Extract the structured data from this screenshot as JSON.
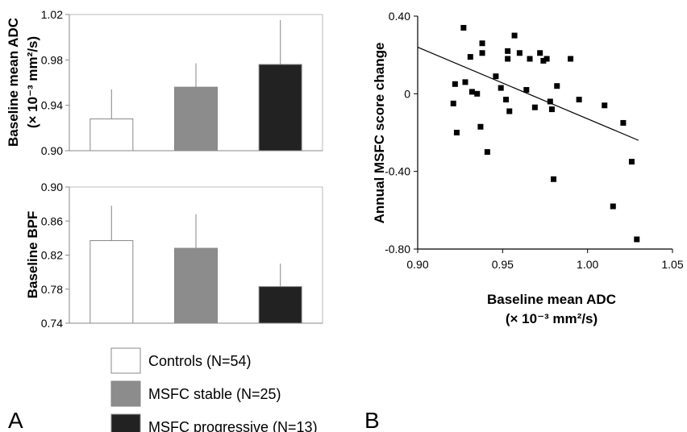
{
  "panel_labels": {
    "a": "A",
    "b": "B"
  },
  "legend": [
    {
      "label": "Controls (N=54)",
      "color": "#ffffff"
    },
    {
      "label": "MSFC stable (N=25)",
      "color": "#8c8c8c"
    },
    {
      "label": "MSFC progressive (N=13)",
      "color": "#222222"
    }
  ],
  "chart_data": [
    {
      "type": "bar",
      "ylabel_line1": "Baseline mean ADC",
      "ylabel_line2": "(× 10⁻³ mm²/s)",
      "ylim": [
        0.9,
        1.02
      ],
      "yticks": [
        "0.90",
        "0.94",
        "0.98",
        "1.02"
      ],
      "ytick_values": [
        0.9,
        0.94,
        0.98,
        1.02
      ],
      "grid": false,
      "series": [
        {
          "name": "Controls (N=54)",
          "value": 0.928,
          "error": 0.026
        },
        {
          "name": "MSFC stable (N=25)",
          "value": 0.956,
          "error": 0.021
        },
        {
          "name": "MSFC progressive (N=13)",
          "value": 0.976,
          "error": 0.039
        }
      ]
    },
    {
      "type": "bar",
      "ylabel": "Baseline BPF",
      "ylim": [
        0.74,
        0.9
      ],
      "yticks": [
        "0.74",
        "0.78",
        "0.82",
        "0.86",
        "0.90"
      ],
      "ytick_values": [
        0.74,
        0.78,
        0.82,
        0.86,
        0.9
      ],
      "grid": false,
      "series": [
        {
          "name": "Controls (N=54)",
          "value": 0.837,
          "error": 0.041
        },
        {
          "name": "MSFC stable (N=25)",
          "value": 0.828,
          "error": 0.04
        },
        {
          "name": "MSFC progressive (N=13)",
          "value": 0.783,
          "error": 0.027
        }
      ]
    },
    {
      "type": "scatter",
      "xlabel_line1": "Baseline mean ADC",
      "xlabel_line2": "(× 10⁻³ mm²/s)",
      "ylabel": "Annual MSFC score change",
      "xlim": [
        0.9,
        1.05
      ],
      "ylim": [
        -0.8,
        0.4
      ],
      "xticks": [
        "0.90",
        "0.95",
        "1.00",
        "1.05"
      ],
      "xtick_values": [
        0.9,
        0.95,
        1.0,
        1.05
      ],
      "yticks": [
        "0.40",
        "0",
        "-0.40",
        "-0.80"
      ],
      "ytick_values": [
        0.4,
        0,
        -0.4,
        -0.8
      ],
      "grid": false,
      "trendline": {
        "x": [
          0.9,
          1.03
        ],
        "y": [
          0.24,
          -0.24
        ]
      },
      "points": [
        {
          "x": 0.922,
          "y": 0.05
        },
        {
          "x": 0.921,
          "y": -0.05
        },
        {
          "x": 0.923,
          "y": -0.2
        },
        {
          "x": 0.927,
          "y": 0.34
        },
        {
          "x": 0.928,
          "y": 0.06
        },
        {
          "x": 0.931,
          "y": 0.19
        },
        {
          "x": 0.932,
          "y": 0.01
        },
        {
          "x": 0.935,
          "y": 0.0
        },
        {
          "x": 0.937,
          "y": -0.17
        },
        {
          "x": 0.938,
          "y": 0.26
        },
        {
          "x": 0.938,
          "y": 0.21
        },
        {
          "x": 0.941,
          "y": -0.3
        },
        {
          "x": 0.946,
          "y": 0.09
        },
        {
          "x": 0.949,
          "y": 0.03
        },
        {
          "x": 0.952,
          "y": -0.03
        },
        {
          "x": 0.953,
          "y": 0.18
        },
        {
          "x": 0.953,
          "y": 0.22
        },
        {
          "x": 0.954,
          "y": -0.09
        },
        {
          "x": 0.957,
          "y": 0.3
        },
        {
          "x": 0.96,
          "y": 0.21
        },
        {
          "x": 0.964,
          "y": 0.02
        },
        {
          "x": 0.966,
          "y": 0.18
        },
        {
          "x": 0.969,
          "y": -0.07
        },
        {
          "x": 0.972,
          "y": 0.21
        },
        {
          "x": 0.974,
          "y": 0.17
        },
        {
          "x": 0.976,
          "y": 0.18
        },
        {
          "x": 0.978,
          "y": -0.04
        },
        {
          "x": 0.979,
          "y": -0.08
        },
        {
          "x": 0.98,
          "y": -0.44
        },
        {
          "x": 0.982,
          "y": 0.04
        },
        {
          "x": 0.99,
          "y": 0.18
        },
        {
          "x": 0.995,
          "y": -0.03
        },
        {
          "x": 1.01,
          "y": -0.06
        },
        {
          "x": 1.015,
          "y": -0.58
        },
        {
          "x": 1.021,
          "y": -0.15
        },
        {
          "x": 1.026,
          "y": -0.35
        },
        {
          "x": 1.029,
          "y": -0.75
        }
      ]
    }
  ]
}
